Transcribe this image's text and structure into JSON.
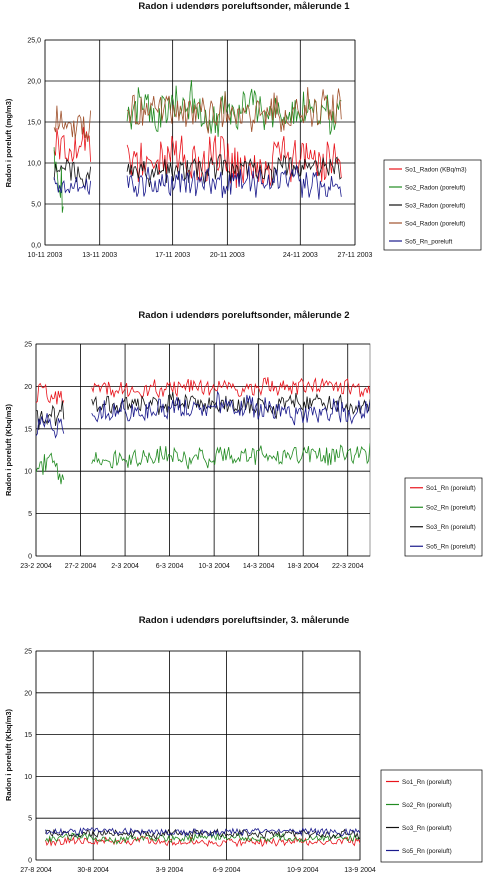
{
  "chart_data": [
    {
      "type": "line",
      "title": "Radon i udendørs poreluftsonder, målerunde 1",
      "ylabel": "Radon i poreluft (mg/m3)",
      "ylim": [
        0,
        25
      ],
      "yticks": [
        "0,0",
        "5,0",
        "10,0",
        "15,0",
        "20,0",
        "25,0"
      ],
      "x_range": [
        "2003-11-10",
        "2003-11-27"
      ],
      "xticks": [
        {
          "date": "2003-11-10",
          "label": "10-11 2003"
        },
        {
          "date": "2003-11-13",
          "label": "13-11 2003"
        },
        {
          "date": "2003-11-17",
          "label": "17-11 2003"
        },
        {
          "date": "2003-11-20",
          "label": "20-11 2003"
        },
        {
          "date": "2003-11-24",
          "label": "24-11 2003"
        },
        {
          "date": "2003-11-27",
          "label": "27-11 2003"
        }
      ],
      "grid": true,
      "legend": "right",
      "series": [
        {
          "name": "So1_Radon (KBq/m3)",
          "color": "#e8141c",
          "segments": [
            {
              "start": "2003-11-10 12:00",
              "end": "2003-11-12 12:00",
              "level": 12.0,
              "spread": 1.8
            },
            {
              "start": "2003-11-14 12:00",
              "end": "2003-11-26 06:00",
              "level": 10.5,
              "spread": 2.4
            }
          ]
        },
        {
          "name": "So2_Radon (poreluft)",
          "color": "#228b22",
          "segments": [
            {
              "start": "2003-11-10 12:00",
              "end": "2003-11-11 00:00",
              "level": 10.0,
              "spread": 4.0
            },
            {
              "start": "2003-11-14 12:00",
              "end": "2003-11-26 06:00",
              "level": 16.5,
              "spread": 2.2
            }
          ]
        },
        {
          "name": "So3_Radon (poreluft)",
          "color": "#111111",
          "segments": [
            {
              "start": "2003-11-10 12:00",
              "end": "2003-11-12 12:00",
              "level": 9.0,
              "spread": 1.3
            },
            {
              "start": "2003-11-14 12:00",
              "end": "2003-11-26 06:00",
              "level": 9.0,
              "spread": 1.4
            }
          ]
        },
        {
          "name": "So4_Radon (poreluft)",
          "color": "#a0522d",
          "segments": [
            {
              "start": "2003-11-10 12:00",
              "end": "2003-11-12 12:00",
              "level": 14.5,
              "spread": 2.0
            },
            {
              "start": "2003-11-14 12:00",
              "end": "2003-11-26 06:00",
              "level": 16.5,
              "spread": 2.0
            }
          ]
        },
        {
          "name": "So5_Rn_poreluft",
          "color": "#1a1a8c",
          "segments": [
            {
              "start": "2003-11-10 12:00",
              "end": "2003-11-12 12:00",
              "level": 7.5,
              "spread": 1.2
            },
            {
              "start": "2003-11-14 12:00",
              "end": "2003-11-26 06:00",
              "level": 7.5,
              "spread": 1.6
            }
          ]
        }
      ]
    },
    {
      "type": "line",
      "title": "Radon i udendørs poreluftsonder, målerunde 2",
      "ylabel": "Radon i poreluft (Kbq/m3)",
      "ylim": [
        0,
        25
      ],
      "yticks": [
        "0",
        "5",
        "10",
        "15",
        "20",
        "25"
      ],
      "x_range": [
        "2004-02-23",
        "2004-03-24"
      ],
      "xticks": [
        {
          "date": "2004-02-23",
          "label": "23-2 2004"
        },
        {
          "date": "2004-02-27",
          "label": "27-2 2004"
        },
        {
          "date": "2004-03-02",
          "label": "2-3 2004"
        },
        {
          "date": "2004-03-06",
          "label": "6-3 2004"
        },
        {
          "date": "2004-03-10",
          "label": "10-3 2004"
        },
        {
          "date": "2004-03-14",
          "label": "14-3 2004"
        },
        {
          "date": "2004-03-18",
          "label": "18-3 2004"
        },
        {
          "date": "2004-03-22",
          "label": "22-3 2004"
        }
      ],
      "grid": true,
      "legend": "right",
      "series": [
        {
          "name": "So1_Rn (poreluft)",
          "color": "#e8141c",
          "segments": [
            {
              "start": "2004-02-23 00:00",
              "end": "2004-02-25 12:00",
              "level": 19.5,
              "spread": 1.2
            },
            {
              "start": "2004-02-28 00:00",
              "end": "2004-03-24 00:00",
              "level": 19.8,
              "spread": 0.9
            }
          ]
        },
        {
          "name": "So2_Rn (poreluft)",
          "color": "#228b22",
          "segments": [
            {
              "start": "2004-02-23 00:00",
              "end": "2004-02-25 12:00",
              "level": 10.5,
              "spread": 1.3
            },
            {
              "start": "2004-02-28 00:00",
              "end": "2004-03-24 00:00",
              "level": 11.8,
              "spread": 1.0
            }
          ]
        },
        {
          "name": "So3_Rn (poreluft)",
          "color": "#111111",
          "segments": [
            {
              "start": "2004-02-23 00:00",
              "end": "2004-02-25 12:00",
              "level": 16.8,
              "spread": 1.4
            },
            {
              "start": "2004-02-28 00:00",
              "end": "2004-03-24 00:00",
              "level": 17.8,
              "spread": 1.0
            }
          ]
        },
        {
          "name": "So5_Rn (poreluft)",
          "color": "#1a1a8c",
          "segments": [
            {
              "start": "2004-02-23 00:00",
              "end": "2004-02-25 12:00",
              "level": 15.5,
              "spread": 1.3
            },
            {
              "start": "2004-02-28 00:00",
              "end": "2004-03-24 00:00",
              "level": 17.2,
              "spread": 1.2
            }
          ]
        }
      ]
    },
    {
      "type": "line",
      "title": "Radon i udendørs poreluftsinder, 3. målerunde",
      "ylabel": "Radon i poreluft (Kbq/m3)",
      "ylim": [
        0,
        25
      ],
      "yticks": [
        "0",
        "5",
        "10",
        "15",
        "20",
        "25"
      ],
      "x_range": [
        "2004-08-27",
        "2004-09-13"
      ],
      "xticks": [
        {
          "date": "2004-08-27",
          "label": "27-8 2004"
        },
        {
          "date": "2004-08-30",
          "label": "30-8 2004"
        },
        {
          "date": "2004-09-03",
          "label": "3-9 2004"
        },
        {
          "date": "2004-09-06",
          "label": "6-9 2004"
        },
        {
          "date": "2004-09-10",
          "label": "10-9 2004"
        },
        {
          "date": "2004-09-13",
          "label": "13-9 2004"
        }
      ],
      "grid": true,
      "legend": "right",
      "series": [
        {
          "name": "So1_Rn (poreluft)",
          "color": "#e8141c",
          "segments": [
            {
              "start": "2004-08-27 12:00",
              "end": "2004-09-13 00:00",
              "level": 2.2,
              "spread": 0.4
            }
          ]
        },
        {
          "name": "So2_Rn (poreluft)",
          "color": "#228b22",
          "segments": [
            {
              "start": "2004-08-27 12:00",
              "end": "2004-09-13 00:00",
              "level": 2.6,
              "spread": 0.4
            }
          ]
        },
        {
          "name": "So3_Rn (poreluft)",
          "color": "#111111",
          "segments": [
            {
              "start": "2004-08-27 12:00",
              "end": "2004-09-13 00:00",
              "level": 3.2,
              "spread": 0.4
            }
          ]
        },
        {
          "name": "So5_Rn (poreluft)",
          "color": "#1a1a8c",
          "segments": [
            {
              "start": "2004-08-27 12:00",
              "end": "2004-09-13 00:00",
              "level": 3.4,
              "spread": 0.4
            }
          ]
        }
      ]
    }
  ]
}
